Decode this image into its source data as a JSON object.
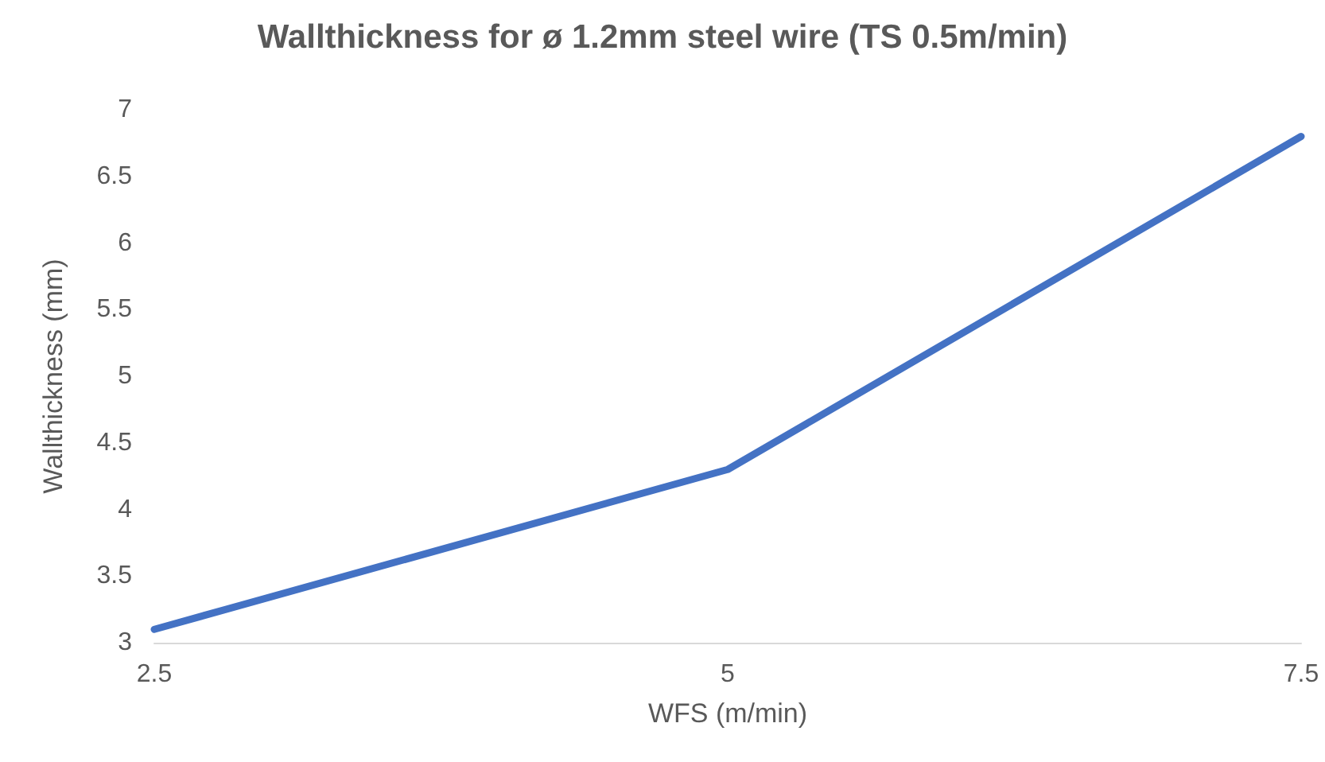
{
  "chart_data": {
    "type": "line",
    "title": "Wallthickness for ø 1.2mm steel wire (TS 0.5m/min)",
    "xlabel": "WFS (m/min)",
    "ylabel": "Wallthickness (mm)",
    "x": [
      2.5,
      5,
      7.5
    ],
    "series": [
      {
        "color": "#4472c4",
        "values": [
          3.1,
          4.3,
          6.8
        ]
      }
    ],
    "xlim": [
      2.5,
      7.5
    ],
    "xticks": [
      2.5,
      5,
      7.5
    ],
    "ylim": [
      3,
      7
    ],
    "yticks": [
      3,
      3.5,
      4,
      4.5,
      5,
      5.5,
      6,
      6.5,
      7
    ],
    "grid": false,
    "marker": "none",
    "line_style": "solid"
  }
}
